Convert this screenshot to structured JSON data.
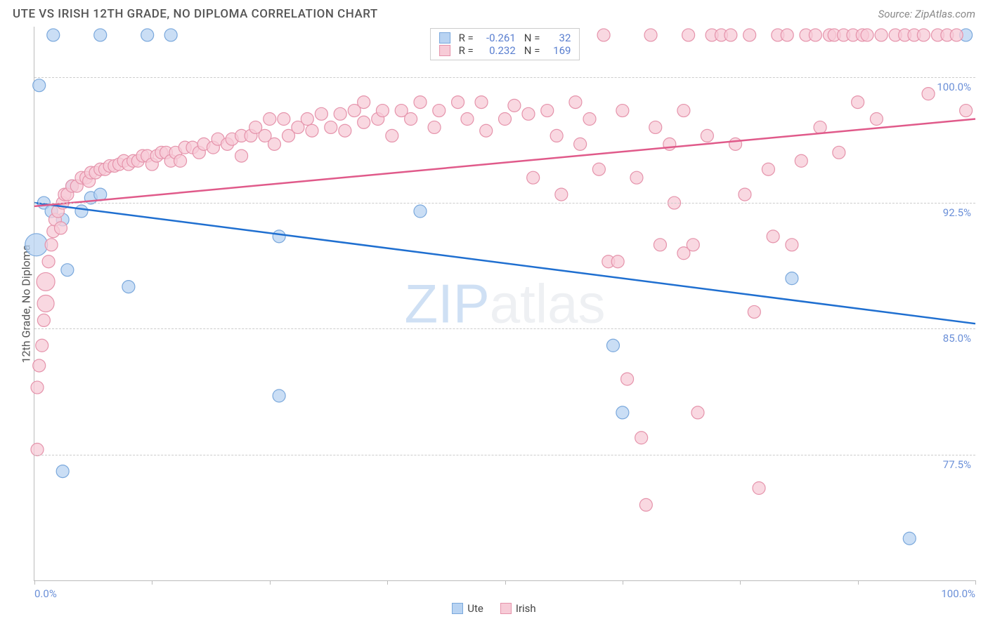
{
  "title": "UTE VS IRISH 12TH GRADE, NO DIPLOMA CORRELATION CHART",
  "source": "Source: ZipAtlas.com",
  "ylabel": "12th Grade, No Diploma",
  "watermark": {
    "part1": "ZIP",
    "part2": "atlas"
  },
  "chart": {
    "type": "scatter",
    "xlim": [
      0,
      100
    ],
    "ylim": [
      70,
      103
    ],
    "y_gridlines": [
      77.5,
      85.0,
      92.5,
      100.0
    ],
    "y_labels": [
      "77.5%",
      "85.0%",
      "92.5%",
      "100.0%"
    ],
    "xticks": [
      0,
      12.5,
      25,
      37.5,
      50,
      62.5,
      75,
      87.5,
      100
    ],
    "x_labels": {
      "0": "0.0%",
      "100": "100.0%"
    },
    "background_color": "#ffffff",
    "grid_color": "#cccccc",
    "axis_color": "#bbbbbb",
    "series": [
      {
        "name": "Ute",
        "color_fill": "#b8d3f2",
        "color_stroke": "#7aa8dc",
        "line_color": "#1f6fd0",
        "radius": 9,
        "R": "-0.261",
        "N": "32",
        "trend": {
          "x1": 0,
          "y1": 92.5,
          "x2": 100,
          "y2": 85.3
        },
        "points": [
          {
            "x": 0.5,
            "y": 99.5,
            "r": 9
          },
          {
            "x": 2.0,
            "y": 102.5,
            "r": 9
          },
          {
            "x": 7.0,
            "y": 102.5,
            "r": 9
          },
          {
            "x": 12.0,
            "y": 102.5,
            "r": 9
          },
          {
            "x": 14.5,
            "y": 102.5,
            "r": 9
          },
          {
            "x": 99.0,
            "y": 102.5,
            "r": 9
          },
          {
            "x": 0.2,
            "y": 90.0,
            "r": 16
          },
          {
            "x": 1.0,
            "y": 92.5,
            "r": 9
          },
          {
            "x": 1.8,
            "y": 92.0,
            "r": 9
          },
          {
            "x": 3.0,
            "y": 91.5,
            "r": 9
          },
          {
            "x": 4.0,
            "y": 93.5,
            "r": 9
          },
          {
            "x": 5.0,
            "y": 92.0,
            "r": 9
          },
          {
            "x": 6.0,
            "y": 92.8,
            "r": 9
          },
          {
            "x": 7.0,
            "y": 93.0,
            "r": 9
          },
          {
            "x": 3.5,
            "y": 88.5,
            "r": 9
          },
          {
            "x": 10.0,
            "y": 87.5,
            "r": 9
          },
          {
            "x": 26.0,
            "y": 90.5,
            "r": 9
          },
          {
            "x": 41.0,
            "y": 92.0,
            "r": 9
          },
          {
            "x": 80.5,
            "y": 88.0,
            "r": 9
          },
          {
            "x": 61.5,
            "y": 84.0,
            "r": 9
          },
          {
            "x": 62.5,
            "y": 80.0,
            "r": 9
          },
          {
            "x": 3.0,
            "y": 76.5,
            "r": 9
          },
          {
            "x": 26.0,
            "y": 81.0,
            "r": 9
          },
          {
            "x": 93.0,
            "y": 72.5,
            "r": 9
          }
        ]
      },
      {
        "name": "Irish",
        "color_fill": "#f7cbd7",
        "color_stroke": "#e593ab",
        "line_color": "#e05a8a",
        "radius": 9,
        "R": "0.232",
        "N": "169",
        "trend": {
          "x1": 0,
          "y1": 92.3,
          "x2": 100,
          "y2": 97.5
        },
        "points": [
          {
            "x": 0.3,
            "y": 77.8,
            "r": 9
          },
          {
            "x": 0.3,
            "y": 81.5,
            "r": 9
          },
          {
            "x": 0.5,
            "y": 82.8,
            "r": 9
          },
          {
            "x": 0.8,
            "y": 84.0,
            "r": 9
          },
          {
            "x": 1.0,
            "y": 85.5,
            "r": 9
          },
          {
            "x": 1.2,
            "y": 86.5,
            "r": 12
          },
          {
            "x": 1.2,
            "y": 87.8,
            "r": 13
          },
          {
            "x": 1.5,
            "y": 89.0,
            "r": 9
          },
          {
            "x": 1.8,
            "y": 90.0,
            "r": 9
          },
          {
            "x": 2.0,
            "y": 90.8,
            "r": 9
          },
          {
            "x": 2.2,
            "y": 91.5,
            "r": 9
          },
          {
            "x": 2.5,
            "y": 92.0,
            "r": 9
          },
          {
            "x": 2.8,
            "y": 91.0,
            "r": 9
          },
          {
            "x": 3.0,
            "y": 92.5,
            "r": 9
          },
          {
            "x": 3.2,
            "y": 93.0,
            "r": 9
          },
          {
            "x": 3.5,
            "y": 93.0,
            "r": 9
          },
          {
            "x": 4.0,
            "y": 93.5,
            "r": 9
          },
          {
            "x": 4.5,
            "y": 93.5,
            "r": 9
          },
          {
            "x": 5.0,
            "y": 94.0,
            "r": 9
          },
          {
            "x": 5.5,
            "y": 94.0,
            "r": 9
          },
          {
            "x": 5.8,
            "y": 93.8,
            "r": 9
          },
          {
            "x": 6.0,
            "y": 94.3,
            "r": 9
          },
          {
            "x": 6.5,
            "y": 94.3,
            "r": 9
          },
          {
            "x": 7.0,
            "y": 94.5,
            "r": 9
          },
          {
            "x": 7.5,
            "y": 94.5,
            "r": 9
          },
          {
            "x": 8.0,
            "y": 94.7,
            "r": 9
          },
          {
            "x": 8.5,
            "y": 94.7,
            "r": 9
          },
          {
            "x": 9.0,
            "y": 94.8,
            "r": 9
          },
          {
            "x": 9.5,
            "y": 95.0,
            "r": 9
          },
          {
            "x": 10.0,
            "y": 94.8,
            "r": 9
          },
          {
            "x": 10.5,
            "y": 95.0,
            "r": 9
          },
          {
            "x": 11.0,
            "y": 95.0,
            "r": 9
          },
          {
            "x": 11.5,
            "y": 95.3,
            "r": 9
          },
          {
            "x": 12.0,
            "y": 95.3,
            "r": 9
          },
          {
            "x": 12.5,
            "y": 94.8,
            "r": 9
          },
          {
            "x": 13.0,
            "y": 95.3,
            "r": 9
          },
          {
            "x": 13.5,
            "y": 95.5,
            "r": 9
          },
          {
            "x": 14.0,
            "y": 95.5,
            "r": 9
          },
          {
            "x": 14.5,
            "y": 95.0,
            "r": 9
          },
          {
            "x": 15.0,
            "y": 95.5,
            "r": 9
          },
          {
            "x": 15.5,
            "y": 95.0,
            "r": 9
          },
          {
            "x": 16.0,
            "y": 95.8,
            "r": 9
          },
          {
            "x": 16.8,
            "y": 95.8,
            "r": 9
          },
          {
            "x": 17.5,
            "y": 95.5,
            "r": 9
          },
          {
            "x": 18.0,
            "y": 96.0,
            "r": 9
          },
          {
            "x": 19.0,
            "y": 95.8,
            "r": 9
          },
          {
            "x": 19.5,
            "y": 96.3,
            "r": 9
          },
          {
            "x": 20.5,
            "y": 96.0,
            "r": 9
          },
          {
            "x": 21.0,
            "y": 96.3,
            "r": 9
          },
          {
            "x": 22.0,
            "y": 95.3,
            "r": 9
          },
          {
            "x": 22.0,
            "y": 96.5,
            "r": 9
          },
          {
            "x": 23.0,
            "y": 96.5,
            "r": 9
          },
          {
            "x": 23.5,
            "y": 97.0,
            "r": 9
          },
          {
            "x": 24.5,
            "y": 96.5,
            "r": 9
          },
          {
            "x": 25.0,
            "y": 97.5,
            "r": 9
          },
          {
            "x": 25.5,
            "y": 96.0,
            "r": 9
          },
          {
            "x": 26.5,
            "y": 97.5,
            "r": 9
          },
          {
            "x": 27.0,
            "y": 96.5,
            "r": 9
          },
          {
            "x": 28.0,
            "y": 97.0,
            "r": 9
          },
          {
            "x": 29.0,
            "y": 97.5,
            "r": 9
          },
          {
            "x": 29.5,
            "y": 96.8,
            "r": 9
          },
          {
            "x": 30.5,
            "y": 97.8,
            "r": 9
          },
          {
            "x": 31.5,
            "y": 97.0,
            "r": 9
          },
          {
            "x": 32.5,
            "y": 97.8,
            "r": 9
          },
          {
            "x": 33.0,
            "y": 96.8,
            "r": 9
          },
          {
            "x": 34.0,
            "y": 98.0,
            "r": 9
          },
          {
            "x": 35.0,
            "y": 97.3,
            "r": 9
          },
          {
            "x": 35.0,
            "y": 98.5,
            "r": 9
          },
          {
            "x": 36.5,
            "y": 97.5,
            "r": 9
          },
          {
            "x": 37.0,
            "y": 98.0,
            "r": 9
          },
          {
            "x": 38.0,
            "y": 96.5,
            "r": 9
          },
          {
            "x": 39.0,
            "y": 98.0,
            "r": 9
          },
          {
            "x": 40.0,
            "y": 97.5,
            "r": 9
          },
          {
            "x": 41.0,
            "y": 98.5,
            "r": 9
          },
          {
            "x": 42.5,
            "y": 97.0,
            "r": 9
          },
          {
            "x": 43.0,
            "y": 98.0,
            "r": 9
          },
          {
            "x": 45.0,
            "y": 98.5,
            "r": 9
          },
          {
            "x": 46.0,
            "y": 97.5,
            "r": 9
          },
          {
            "x": 47.5,
            "y": 98.5,
            "r": 9
          },
          {
            "x": 48.0,
            "y": 96.8,
            "r": 9
          },
          {
            "x": 50.0,
            "y": 97.5,
            "r": 9
          },
          {
            "x": 51.0,
            "y": 98.3,
            "r": 9
          },
          {
            "x": 52.5,
            "y": 97.8,
            "r": 9
          },
          {
            "x": 53.0,
            "y": 94.0,
            "r": 9
          },
          {
            "x": 54.5,
            "y": 98.0,
            "r": 9
          },
          {
            "x": 55.5,
            "y": 96.5,
            "r": 9
          },
          {
            "x": 56.0,
            "y": 93.0,
            "r": 9
          },
          {
            "x": 57.5,
            "y": 98.5,
            "r": 9
          },
          {
            "x": 58.0,
            "y": 96.0,
            "r": 9
          },
          {
            "x": 59.0,
            "y": 97.5,
            "r": 9
          },
          {
            "x": 60.0,
            "y": 94.5,
            "r": 9
          },
          {
            "x": 60.5,
            "y": 102.5,
            "r": 9
          },
          {
            "x": 61.0,
            "y": 89.0,
            "r": 9
          },
          {
            "x": 62.0,
            "y": 89.0,
            "r": 9
          },
          {
            "x": 62.5,
            "y": 98.0,
            "r": 9
          },
          {
            "x": 63.0,
            "y": 82.0,
            "r": 9
          },
          {
            "x": 64.0,
            "y": 94.0,
            "r": 9
          },
          {
            "x": 64.5,
            "y": 78.5,
            "r": 9
          },
          {
            "x": 65.0,
            "y": 74.5,
            "r": 9
          },
          {
            "x": 65.5,
            "y": 102.5,
            "r": 9
          },
          {
            "x": 66.0,
            "y": 97.0,
            "r": 9
          },
          {
            "x": 66.5,
            "y": 90.0,
            "r": 9
          },
          {
            "x": 67.5,
            "y": 96.0,
            "r": 9
          },
          {
            "x": 68.0,
            "y": 92.5,
            "r": 9
          },
          {
            "x": 69.0,
            "y": 98.0,
            "r": 9
          },
          {
            "x": 69.0,
            "y": 89.5,
            "r": 9
          },
          {
            "x": 69.5,
            "y": 102.5,
            "r": 9
          },
          {
            "x": 70.0,
            "y": 90.0,
            "r": 9
          },
          {
            "x": 70.5,
            "y": 80.0,
            "r": 9
          },
          {
            "x": 71.5,
            "y": 96.5,
            "r": 9
          },
          {
            "x": 72.0,
            "y": 102.5,
            "r": 9
          },
          {
            "x": 73.0,
            "y": 102.5,
            "r": 9
          },
          {
            "x": 74.0,
            "y": 102.5,
            "r": 9
          },
          {
            "x": 74.5,
            "y": 96.0,
            "r": 9
          },
          {
            "x": 75.5,
            "y": 93.0,
            "r": 9
          },
          {
            "x": 76.0,
            "y": 102.5,
            "r": 9
          },
          {
            "x": 76.5,
            "y": 86.0,
            "r": 9
          },
          {
            "x": 77.0,
            "y": 75.5,
            "r": 9
          },
          {
            "x": 78.0,
            "y": 94.5,
            "r": 9
          },
          {
            "x": 78.5,
            "y": 90.5,
            "r": 9
          },
          {
            "x": 79.0,
            "y": 102.5,
            "r": 9
          },
          {
            "x": 80.0,
            "y": 102.5,
            "r": 9
          },
          {
            "x": 80.5,
            "y": 90.0,
            "r": 9
          },
          {
            "x": 81.5,
            "y": 95.0,
            "r": 9
          },
          {
            "x": 82.0,
            "y": 102.5,
            "r": 9
          },
          {
            "x": 83.0,
            "y": 102.5,
            "r": 9
          },
          {
            "x": 83.5,
            "y": 97.0,
            "r": 9
          },
          {
            "x": 84.5,
            "y": 102.5,
            "r": 9
          },
          {
            "x": 85.0,
            "y": 102.5,
            "r": 9
          },
          {
            "x": 85.5,
            "y": 95.5,
            "r": 9
          },
          {
            "x": 86.0,
            "y": 102.5,
            "r": 9
          },
          {
            "x": 87.0,
            "y": 102.5,
            "r": 9
          },
          {
            "x": 87.5,
            "y": 98.5,
            "r": 9
          },
          {
            "x": 88.0,
            "y": 102.5,
            "r": 9
          },
          {
            "x": 88.5,
            "y": 102.5,
            "r": 9
          },
          {
            "x": 89.5,
            "y": 97.5,
            "r": 9
          },
          {
            "x": 90.0,
            "y": 102.5,
            "r": 9
          },
          {
            "x": 91.5,
            "y": 102.5,
            "r": 9
          },
          {
            "x": 92.5,
            "y": 102.5,
            "r": 9
          },
          {
            "x": 93.5,
            "y": 102.5,
            "r": 9
          },
          {
            "x": 94.5,
            "y": 102.5,
            "r": 9
          },
          {
            "x": 95.0,
            "y": 99.0,
            "r": 9
          },
          {
            "x": 96.0,
            "y": 102.5,
            "r": 9
          },
          {
            "x": 97.0,
            "y": 102.5,
            "r": 9
          },
          {
            "x": 98.0,
            "y": 102.5,
            "r": 9
          },
          {
            "x": 99.0,
            "y": 98.0,
            "r": 9
          }
        ]
      }
    ]
  },
  "legend": [
    {
      "label": "Ute",
      "fill": "#b8d3f2",
      "stroke": "#7aa8dc"
    },
    {
      "label": "Irish",
      "fill": "#f7cbd7",
      "stroke": "#e593ab"
    }
  ]
}
